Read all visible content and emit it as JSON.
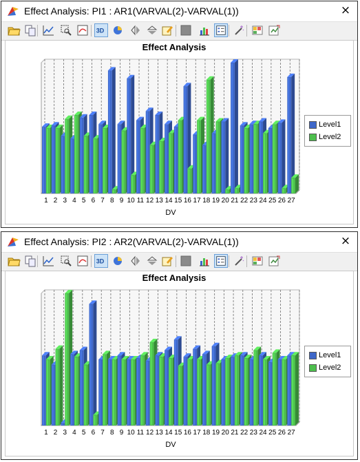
{
  "panels": [
    {
      "window_title": "Effect Analysis: PI1 : AR1(VARVAL(2)-VARVAL(1))",
      "close_glyph": "×",
      "toolbar_icons": [
        "open-folder-icon",
        "copy-icon",
        "line-chart-icon",
        "zoom-icon",
        "reset-chart-icon",
        "3d-toggle-icon",
        "pie-sphere-icon",
        "flip-horizontal-icon",
        "flip-vertical-icon",
        "edit-icon",
        "gray-box-icon",
        "bar-chart-icon",
        "legend-icon",
        "magic-wand-icon",
        "palette-icon",
        "export-icon"
      ],
      "chart_data": {
        "type": "bar",
        "title": "Effect Analysis",
        "xlabel": "DV",
        "ylabel": "",
        "categories": [
          "1",
          "2",
          "3",
          "4",
          "5",
          "6",
          "7",
          "8",
          "9",
          "10",
          "11",
          "12",
          "13",
          "14",
          "15",
          "16",
          "17",
          "18",
          "19",
          "20",
          "21",
          "22",
          "23",
          "24",
          "25",
          "26",
          "27"
        ],
        "ylim": [
          0,
          100
        ],
        "grid": "vertical dashed",
        "legend_position": "right",
        "series": [
          {
            "name": "Level1",
            "color": "#3e67c9",
            "values": [
              51,
              52,
              44,
              42,
              58,
              60,
              53,
              94,
              53,
              88,
              56,
              63,
              60,
              53,
              51,
              82,
              45,
              37,
              46,
              55,
              100,
              52,
              53,
              55,
              50,
              54,
              89
            ]
          },
          {
            "name": "Level2",
            "color": "#4dbf4d",
            "values": [
              50,
              50,
              57,
              60,
              44,
              42,
              50,
              3,
              48,
              14,
              50,
              37,
              40,
              46,
              56,
              19,
              56,
              87,
              55,
              3,
              4,
              50,
              53,
              46,
              53,
              4,
              12
            ]
          }
        ]
      },
      "legend": [
        {
          "label": "Level1",
          "color": "#3e67c9"
        },
        {
          "label": "Level2",
          "color": "#4dbf4d"
        }
      ]
    },
    {
      "window_title": "Effect Analysis: PI2 : AR2(VARVAL(2)-VARVAL(1))",
      "close_glyph": "×",
      "toolbar_icons": [
        "open-folder-icon",
        "copy-icon",
        "line-chart-icon",
        "zoom-icon",
        "reset-chart-icon",
        "3d-toggle-icon",
        "pie-sphere-icon",
        "flip-horizontal-icon",
        "flip-vertical-icon",
        "edit-icon",
        "gray-box-icon",
        "bar-chart-icon",
        "legend-icon",
        "magic-wand-icon",
        "palette-icon",
        "export-icon"
      ],
      "chart_data": {
        "type": "bar",
        "title": "Effect Analysis",
        "xlabel": "DV",
        "ylabel": "",
        "categories": [
          "1",
          "2",
          "3",
          "4",
          "5",
          "6",
          "7",
          "8",
          "9",
          "10",
          "11",
          "12",
          "13",
          "14",
          "15",
          "16",
          "17",
          "18",
          "19",
          "20",
          "21",
          "22",
          "23",
          "24",
          "25",
          "26",
          "27"
        ],
        "ylim": [
          0,
          100
        ],
        "grid": "vertical dashed",
        "legend_position": "right",
        "series": [
          {
            "name": "Level1",
            "color": "#3e67c9",
            "values": [
              53,
              46,
              2,
              54,
              57,
              92,
              50,
              50,
              53,
              50,
              51,
              49,
              53,
              57,
              65,
              52,
              58,
              54,
              60,
              50,
              52,
              53,
              50,
              53,
              48,
              50,
              53
            ]
          },
          {
            "name": "Level2",
            "color": "#4dbf4d",
            "values": [
              50,
              58,
              100,
              52,
              46,
              8,
              54,
              50,
              50,
              50,
              53,
              63,
              52,
              51,
              45,
              50,
              50,
              46,
              47,
              51,
              53,
              51,
              57,
              50,
              55,
              50,
              53
            ]
          }
        ]
      },
      "legend": [
        {
          "label": "Level1",
          "color": "#3e67c9"
        },
        {
          "label": "Level2",
          "color": "#4dbf4d"
        }
      ]
    }
  ]
}
